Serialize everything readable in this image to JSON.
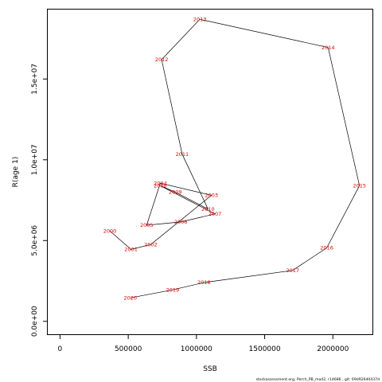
{
  "chart_data": {
    "type": "line",
    "xlabel": "SSB",
    "ylabel": "R(age 1)",
    "xlim": [
      -90000,
      2290000
    ],
    "ylim": [
      -800000,
      19300000
    ],
    "x_ticks": [
      0,
      500000,
      1000000,
      1500000,
      2000000
    ],
    "x_tick_labels": [
      "0",
      "500000",
      "1000000",
      "1500000",
      "2000000"
    ],
    "y_ticks": [
      0,
      5000000,
      10000000,
      15000000
    ],
    "y_tick_labels": [
      "0.0e+00",
      "5.0e+06",
      "1.0e+07",
      "1.5e+07"
    ],
    "grid": false,
    "line_color": "#000000",
    "label_color": "#e00000",
    "points": [
      {
        "year": "2000",
        "x": 365000,
        "y": 5600000
      },
      {
        "year": "2001",
        "x": 520000,
        "y": 4450000
      },
      {
        "year": "2002",
        "x": 665000,
        "y": 4750000
      },
      {
        "year": "2003",
        "x": 1110000,
        "y": 7800000
      },
      {
        "year": "2004",
        "x": 735000,
        "y": 8550000
      },
      {
        "year": "2005",
        "x": 635000,
        "y": 5950000
      },
      {
        "year": "2006",
        "x": 885000,
        "y": 6150000
      },
      {
        "year": "2007",
        "x": 1135000,
        "y": 6650000
      },
      {
        "year": "2008",
        "x": 735000,
        "y": 8400000
      },
      {
        "year": "2009",
        "x": 845000,
        "y": 8000000
      },
      {
        "year": "2010",
        "x": 1085000,
        "y": 6950000
      },
      {
        "year": "2011",
        "x": 895000,
        "y": 10350000
      },
      {
        "year": "2012",
        "x": 745000,
        "y": 16200000
      },
      {
        "year": "2013",
        "x": 1025000,
        "y": 18700000
      },
      {
        "year": "2014",
        "x": 1965000,
        "y": 16950000
      },
      {
        "year": "2015",
        "x": 2195000,
        "y": 8400000
      },
      {
        "year": "2016",
        "x": 1955000,
        "y": 4550000
      },
      {
        "year": "2017",
        "x": 1705000,
        "y": 3150000
      },
      {
        "year": "2018",
        "x": 1055000,
        "y": 2400000
      },
      {
        "year": "2019",
        "x": 825000,
        "y": 1950000
      },
      {
        "year": "2020",
        "x": 515000,
        "y": 1450000
      }
    ]
  },
  "footer_text": "stockassessment.org, Perch_PB_mod2, r14686 , git: 69d926d0437d"
}
